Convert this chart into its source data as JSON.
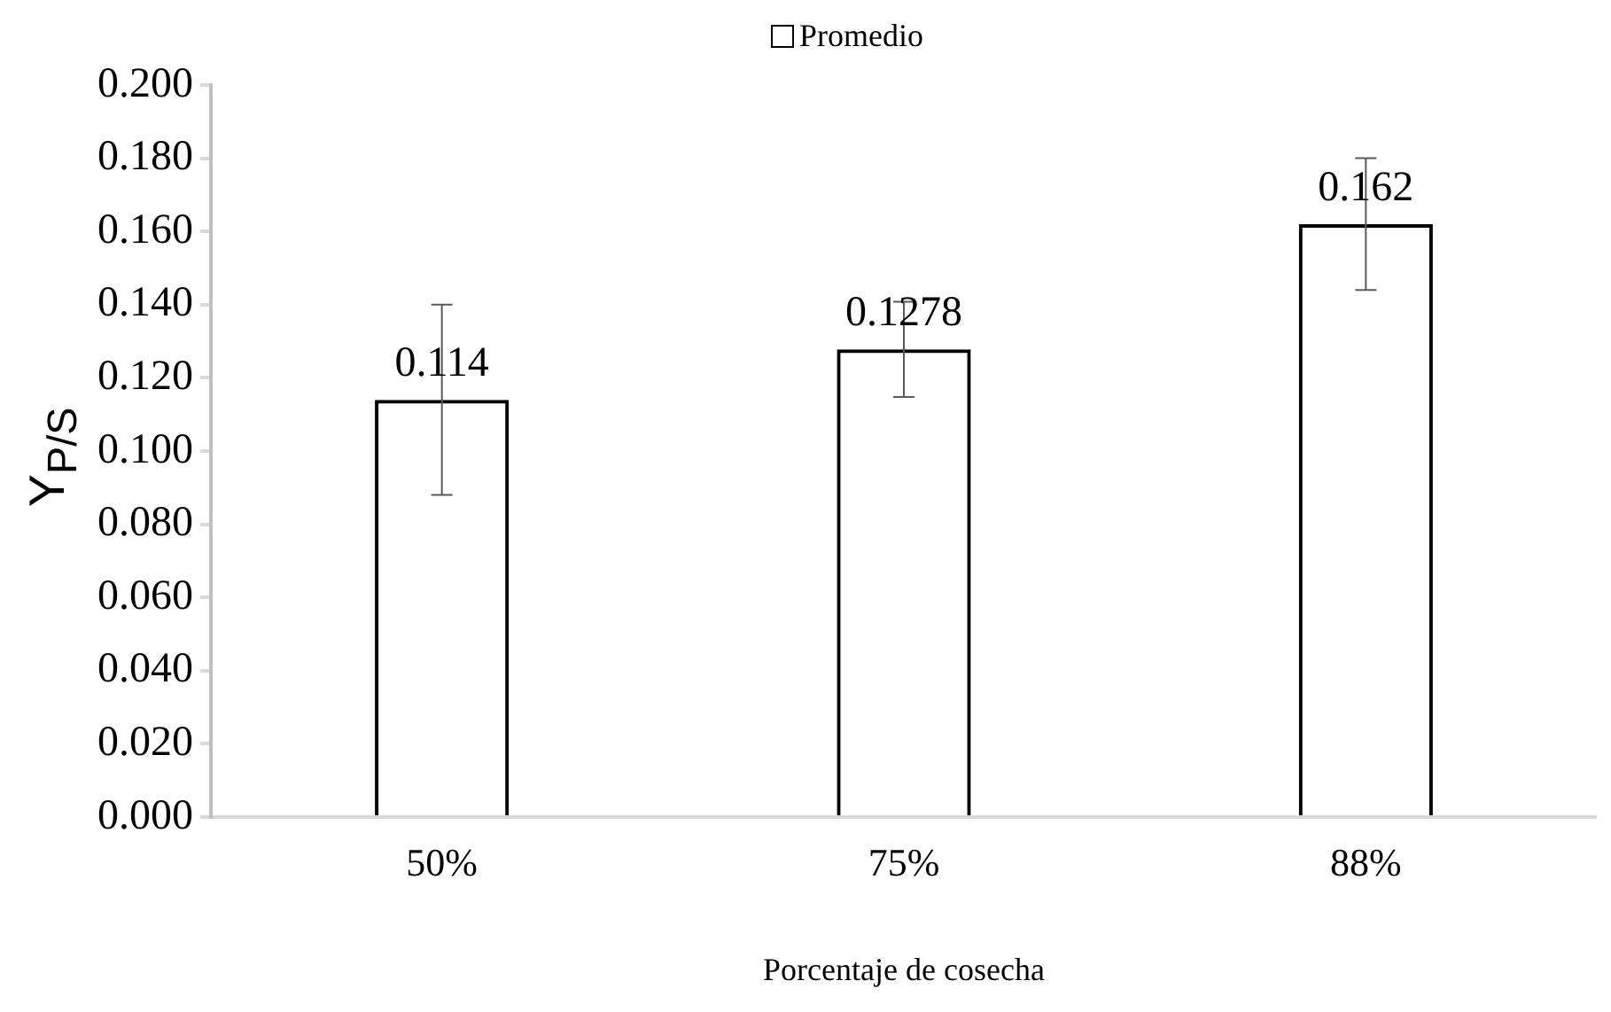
{
  "chart_data": {
    "type": "bar",
    "categories": [
      "50%",
      "75%",
      "88%"
    ],
    "series": [
      {
        "name": "Promedio",
        "color": "#000000",
        "values": [
          0.114,
          0.1278,
          0.162
        ],
        "errors": [
          0.026,
          0.013,
          0.018
        ]
      }
    ],
    "xlabel": "Porcentaje de cosecha",
    "ylabel": "Y$_{P/S}$",
    "ylim": [
      0,
      0.2
    ],
    "yticks": [
      {
        "value": 0,
        "label": "0.000"
      },
      {
        "value": 0.02,
        "label": "0.020"
      },
      {
        "value": 0.04,
        "label": "0.040"
      },
      {
        "value": 0.06,
        "label": "0.060"
      },
      {
        "value": 0.08,
        "label": "0.080"
      },
      {
        "value": 0.1,
        "label": "0.100"
      },
      {
        "value": 0.12,
        "label": "0.120"
      },
      {
        "value": 0.14,
        "label": "0.140"
      },
      {
        "value": 0.16,
        "label": "0.160"
      },
      {
        "value": 0.18,
        "label": "0.180"
      },
      {
        "value": 0.2,
        "label": "0.200"
      }
    ],
    "data_labels": true,
    "legend": "top",
    "grid": false
  }
}
